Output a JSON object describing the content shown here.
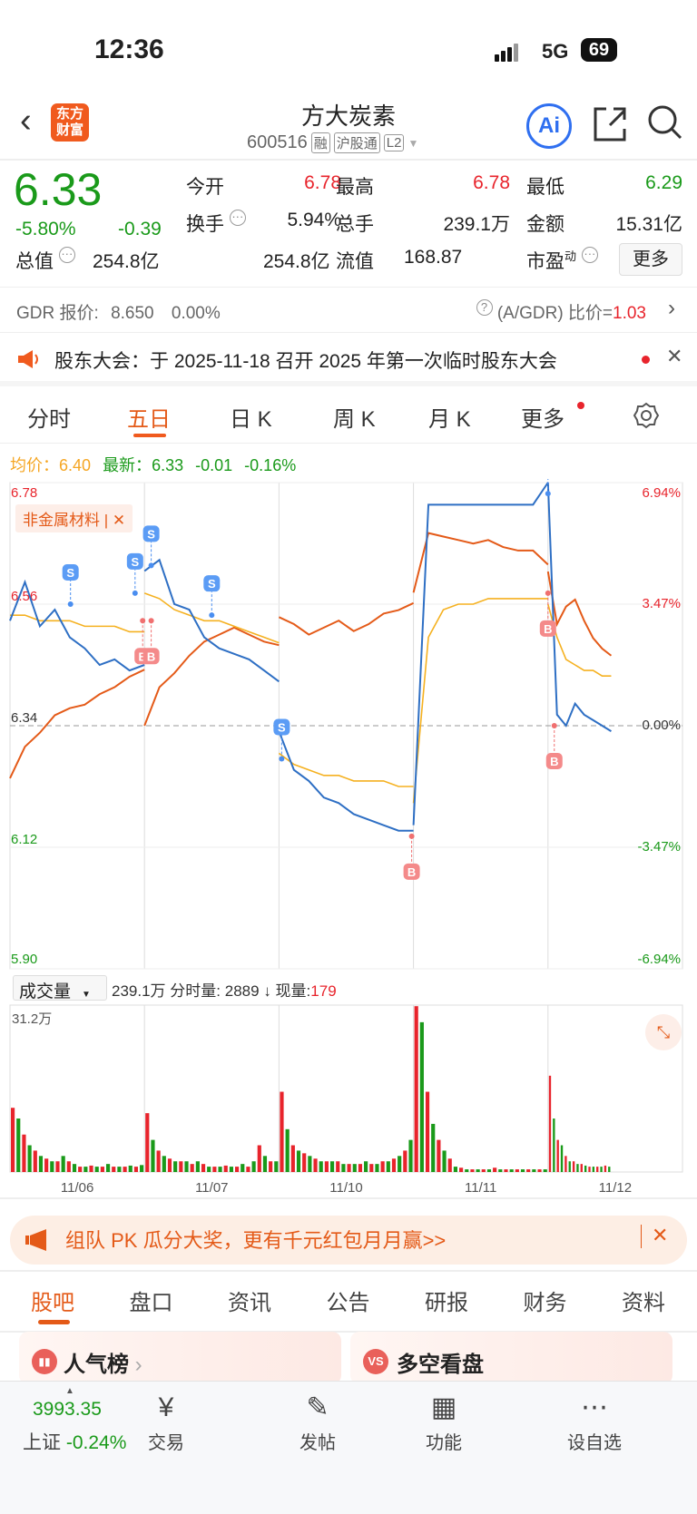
{
  "status_bar": {
    "time": "12:36",
    "network": "5G",
    "battery": "69"
  },
  "header": {
    "logo_text": "东方财富",
    "title": "方大炭素",
    "code": "600516",
    "tags": [
      "融",
      "沪股通",
      "L2"
    ],
    "ai_label": "Ai"
  },
  "quote": {
    "price": "6.33",
    "change_pct": "-5.80%",
    "change": "-0.39",
    "fields": [
      {
        "label": "今开",
        "value": "6.78",
        "color": "red"
      },
      {
        "label": "最高",
        "value": "6.78",
        "color": "red"
      },
      {
        "label": "最低",
        "value": "6.29",
        "color": "green"
      },
      {
        "label": "换手",
        "value": "5.94%",
        "color": "black"
      },
      {
        "label": "总手",
        "value": "239.1万",
        "color": "black"
      },
      {
        "label": "金额",
        "value": "15.31亿",
        "color": "black"
      },
      {
        "label": "总值",
        "value": "254.8亿",
        "color": "black"
      },
      {
        "label": "流值",
        "value": "254.8亿",
        "color": "black"
      },
      {
        "label": "市盈",
        "sup": "动",
        "value": "168.87",
        "color": "black"
      }
    ],
    "more_label": "更多"
  },
  "gdr": {
    "label": "GDR 报价:",
    "price": "8.650",
    "pct": "0.00%",
    "ratio_label": "(A/GDR) 比价=",
    "ratio": "1.03"
  },
  "notice": {
    "text": "股东大会：于 2025-11-18 召开 2025 年第一次临时股东大会"
  },
  "chart_tabs": [
    "分时",
    "五日",
    "日 K",
    "周 K",
    "月 K",
    "更多"
  ],
  "active_chart_tab": "五日",
  "avg_bar": {
    "avg_label": "均价：",
    "avg": "6.40",
    "latest_label": "最新：",
    "latest": "6.33",
    "chg": "-0.01",
    "pct": "-0.16%"
  },
  "chart_data": {
    "type": "line",
    "sector_tag": "非金属材料",
    "y_left_ticks": [
      "6.78",
      "6.56",
      "6.34",
      "6.12",
      "5.90"
    ],
    "y_right_ticks": [
      "6.94%",
      "3.47%",
      "0.00%",
      "-3.47%",
      "-6.94%"
    ],
    "ylim": [
      5.9,
      6.78
    ],
    "base": 6.34,
    "pct_lim": [
      -6.94,
      6.94
    ],
    "x_labels": [
      "11/06",
      "11/07",
      "11/10",
      "11/11",
      "11/12"
    ],
    "price": [
      [
        6.53,
        6.6,
        6.52,
        6.55,
        6.5,
        6.48,
        6.45,
        6.46,
        6.44,
        6.45
      ],
      [
        6.62,
        6.64,
        6.56,
        6.55,
        6.5,
        6.48,
        6.47,
        6.46,
        6.44,
        6.42
      ],
      [
        6.33,
        6.26,
        6.24,
        6.21,
        6.2,
        6.18,
        6.17,
        6.16,
        6.15,
        6.15
      ],
      [
        6.16,
        6.74,
        6.74,
        6.74,
        6.74,
        6.74,
        6.74,
        6.74,
        6.74,
        6.78
      ],
      [
        6.78,
        6.36,
        6.34,
        6.38,
        6.36,
        6.35,
        6.34,
        6.33
      ]
    ],
    "avg": [
      [
        6.54,
        6.54,
        6.53,
        6.53,
        6.53,
        6.52,
        6.52,
        6.52,
        6.51,
        6.51
      ],
      [
        6.58,
        6.57,
        6.55,
        6.54,
        6.53,
        6.53,
        6.52,
        6.51,
        6.5,
        6.49
      ],
      [
        6.29,
        6.27,
        6.26,
        6.25,
        6.25,
        6.24,
        6.24,
        6.24,
        6.23,
        6.23
      ],
      [
        6.2,
        6.5,
        6.55,
        6.56,
        6.56,
        6.57,
        6.57,
        6.57,
        6.57,
        6.57
      ],
      [
        6.56,
        6.5,
        6.46,
        6.45,
        6.44,
        6.44,
        6.43,
        6.43
      ]
    ],
    "sector_pct": [
      [
        -1.5,
        -0.6,
        -0.2,
        0.3,
        0.5,
        0.6,
        0.9,
        1.1,
        1.4,
        1.6
      ],
      [
        0.0,
        1.1,
        1.5,
        2.0,
        2.4,
        2.6,
        2.8,
        2.6,
        2.4,
        2.3
      ],
      [
        3.1,
        2.9,
        2.6,
        2.8,
        3.0,
        2.7,
        2.9,
        3.2,
        3.3,
        3.5
      ],
      [
        3.8,
        5.5,
        5.4,
        5.3,
        5.2,
        5.3,
        5.1,
        5.0,
        5.0,
        4.6
      ],
      [
        4.4,
        2.9,
        3.4,
        3.6,
        3.0,
        2.5,
        2.2,
        2.0
      ]
    ],
    "signals": [
      {
        "type": "S",
        "day": 0,
        "pos": 0.45,
        "price": 6.56
      },
      {
        "type": "S",
        "day": 0,
        "pos": 0.93,
        "price": 6.58
      },
      {
        "type": "B",
        "day": 0,
        "pos": 1.0,
        "price": 6.53
      },
      {
        "type": "S",
        "day": 1,
        "pos": 0.05,
        "price": 6.63
      },
      {
        "type": "B",
        "day": 1,
        "pos": 0.05,
        "price": 6.53
      },
      {
        "type": "S",
        "day": 1,
        "pos": 0.5,
        "price": 6.54
      },
      {
        "type": "S",
        "day": 2,
        "pos": 0.02,
        "price": 6.28
      },
      {
        "type": "B",
        "day": 2,
        "pos": 1.0,
        "price": 6.14
      },
      {
        "type": "S",
        "day": 4,
        "pos": 0.0,
        "price": 6.76
      },
      {
        "type": "B",
        "day": 4,
        "pos": 0.0,
        "price": 6.58
      },
      {
        "type": "B",
        "day": 4,
        "pos": 0.1,
        "price": 6.34
      }
    ],
    "colors": {
      "price": "#2e6fc4",
      "avg": "#f5b120",
      "sector": "#e45a18",
      "up": "#e8242c",
      "down": "#1a9a1a"
    }
  },
  "volume": {
    "selector": "成交量",
    "total": "239.1万",
    "tick_label": "分时量:",
    "tick": "2889",
    "arrow": "↓",
    "now_label": "现量:",
    "now": "179",
    "max_label": "31.2万",
    "max": 31.2,
    "bars": [
      [
        12,
        10,
        7,
        5,
        4,
        3,
        2.5,
        2,
        2,
        3,
        2,
        1.5,
        1,
        1,
        1.2,
        1,
        1,
        1.5,
        1,
        1,
        1,
        1.2,
        1,
        1.3
      ],
      [
        11,
        6,
        4,
        3,
        2.5,
        2,
        2,
        2,
        1.5,
        2,
        1.5,
        1,
        1,
        1,
        1.2,
        1,
        1,
        1.5,
        1,
        2,
        5,
        3,
        2,
        2
      ],
      [
        15,
        8,
        5,
        4,
        3.5,
        3,
        2.5,
        2,
        2,
        2,
        2,
        1.5,
        1.5,
        1.5,
        1.5,
        2,
        1.5,
        1.5,
        2,
        2,
        2.5,
        3,
        4,
        6
      ],
      [
        31,
        28,
        15,
        9,
        6,
        4,
        2.5,
        1,
        0.8,
        0.5,
        0.5,
        0.5,
        0.5,
        0.5,
        0.8,
        0.5,
        0.5,
        0.5,
        0.5,
        0.5,
        0.5,
        0.5,
        0.5,
        0.5
      ],
      [
        18,
        10,
        6,
        5,
        3,
        2,
        2,
        1.5,
        1.5,
        1.2,
        1,
        1,
        1,
        1,
        1.2,
        1
      ]
    ]
  },
  "promo": {
    "text": "组队 PK 瓜分大奖，更有千元红包月月赢>>"
  },
  "bottom_tabs": [
    "股吧",
    "盘口",
    "资讯",
    "公告",
    "研报",
    "财务",
    "资料"
  ],
  "cards": [
    {
      "label": "人气榜"
    },
    {
      "label": "多空看盘"
    }
  ],
  "bottom_bar": {
    "index_value": "3993.35",
    "index_name": "上证",
    "index_pct": "-0.24%",
    "items": [
      "交易",
      "发帖",
      "功能",
      "设自选"
    ]
  }
}
